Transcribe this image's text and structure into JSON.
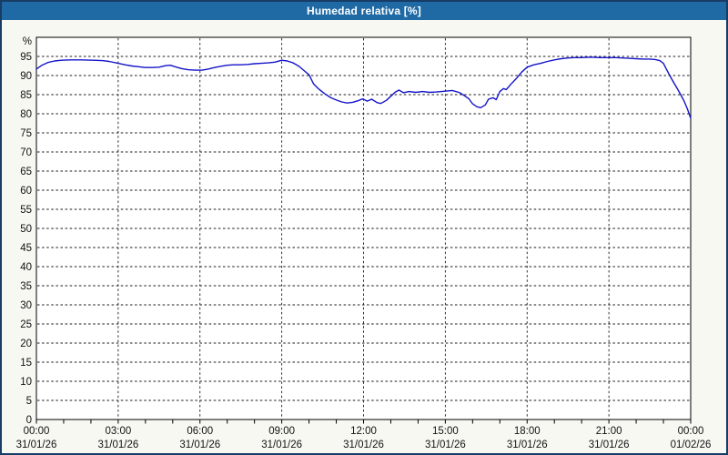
{
  "window": {
    "title": "Humedad relativa [%]"
  },
  "colors": {
    "titlebar_bg": "#1f6aa5",
    "title_text": "#ffffff",
    "frame_border": "#173c66",
    "page_bg": "#f8f8f3",
    "plot_bg": "#ffffff",
    "axis": "#000000",
    "grid": "#1a1a1a",
    "label_text": "#111111",
    "line": "#1414c8"
  },
  "chart_data": {
    "type": "line",
    "title": "Humedad relativa [%]",
    "ylabel": "%",
    "xlabel": "",
    "ylim": [
      0,
      100
    ],
    "ytick_step": 5,
    "ytick_label_min": 0,
    "ytick_label_max": 95,
    "xlim_hours": [
      0,
      24
    ],
    "major_gridline_every_hours": 3,
    "minor_tick_every_hours": 1,
    "grid": "dashed",
    "legend_position": "none",
    "x_ticks": [
      {
        "hour": 0,
        "time": "00:00",
        "date": "31/01/26"
      },
      {
        "hour": 3,
        "time": "03:00",
        "date": "31/01/26"
      },
      {
        "hour": 6,
        "time": "06:00",
        "date": "31/01/26"
      },
      {
        "hour": 9,
        "time": "09:00",
        "date": "31/01/26"
      },
      {
        "hour": 12,
        "time": "12:00",
        "date": "31/01/26"
      },
      {
        "hour": 15,
        "time": "15:00",
        "date": "31/01/26"
      },
      {
        "hour": 18,
        "time": "18:00",
        "date": "31/01/26"
      },
      {
        "hour": 21,
        "time": "21:00",
        "date": "31/01/26"
      },
      {
        "hour": 24,
        "time": "00:00",
        "date": "01/02/26"
      }
    ],
    "series": [
      {
        "name": "Humedad relativa",
        "unit": "%",
        "color": "#1414c8",
        "points_minute_pct": [
          [
            0,
            91.7
          ],
          [
            12,
            92.7
          ],
          [
            25,
            93.4
          ],
          [
            40,
            93.8
          ],
          [
            55,
            94.0
          ],
          [
            75,
            94.1
          ],
          [
            100,
            94.1
          ],
          [
            125,
            94.0
          ],
          [
            145,
            93.9
          ],
          [
            160,
            93.7
          ],
          [
            180,
            93.2
          ],
          [
            195,
            92.8
          ],
          [
            210,
            92.5
          ],
          [
            225,
            92.3
          ],
          [
            240,
            92.1
          ],
          [
            255,
            92.1
          ],
          [
            270,
            92.2
          ],
          [
            285,
            92.6
          ],
          [
            295,
            92.7
          ],
          [
            305,
            92.3
          ],
          [
            320,
            91.8
          ],
          [
            335,
            91.5
          ],
          [
            350,
            91.4
          ],
          [
            365,
            91.4
          ],
          [
            378,
            91.7
          ],
          [
            392,
            92.1
          ],
          [
            405,
            92.4
          ],
          [
            420,
            92.7
          ],
          [
            435,
            92.8
          ],
          [
            450,
            92.8
          ],
          [
            465,
            92.9
          ],
          [
            480,
            93.1
          ],
          [
            495,
            93.2
          ],
          [
            510,
            93.3
          ],
          [
            525,
            93.5
          ],
          [
            540,
            94.0
          ],
          [
            552,
            93.8
          ],
          [
            565,
            93.3
          ],
          [
            578,
            92.4
          ],
          [
            590,
            91.2
          ],
          [
            600,
            90.2
          ],
          [
            610,
            87.8
          ],
          [
            622,
            86.4
          ],
          [
            635,
            85.2
          ],
          [
            648,
            84.2
          ],
          [
            660,
            83.6
          ],
          [
            672,
            83.1
          ],
          [
            684,
            82.8
          ],
          [
            696,
            83.0
          ],
          [
            708,
            83.4
          ],
          [
            718,
            83.9
          ],
          [
            728,
            83.3
          ],
          [
            738,
            83.8
          ],
          [
            750,
            82.9
          ],
          [
            758,
            82.7
          ],
          [
            770,
            83.5
          ],
          [
            782,
            84.8
          ],
          [
            790,
            85.7
          ],
          [
            798,
            86.2
          ],
          [
            808,
            85.5
          ],
          [
            820,
            85.8
          ],
          [
            835,
            85.6
          ],
          [
            850,
            85.8
          ],
          [
            865,
            85.6
          ],
          [
            880,
            85.7
          ],
          [
            900,
            85.9
          ],
          [
            915,
            86.1
          ],
          [
            930,
            85.6
          ],
          [
            940,
            84.9
          ],
          [
            952,
            83.9
          ],
          [
            960,
            82.6
          ],
          [
            970,
            81.8
          ],
          [
            978,
            81.6
          ],
          [
            988,
            82.3
          ],
          [
            995,
            83.8
          ],
          [
            1005,
            84.2
          ],
          [
            1012,
            83.7
          ],
          [
            1020,
            85.8
          ],
          [
            1028,
            86.6
          ],
          [
            1034,
            86.3
          ],
          [
            1044,
            87.7
          ],
          [
            1056,
            89.2
          ],
          [
            1068,
            90.9
          ],
          [
            1080,
            92.2
          ],
          [
            1095,
            92.8
          ],
          [
            1110,
            93.2
          ],
          [
            1125,
            93.7
          ],
          [
            1140,
            94.1
          ],
          [
            1155,
            94.4
          ],
          [
            1170,
            94.6
          ],
          [
            1185,
            94.7
          ],
          [
            1200,
            94.7
          ],
          [
            1220,
            94.8
          ],
          [
            1240,
            94.7
          ],
          [
            1260,
            94.7
          ],
          [
            1275,
            94.7
          ],
          [
            1290,
            94.6
          ],
          [
            1305,
            94.5
          ],
          [
            1320,
            94.4
          ],
          [
            1335,
            94.3
          ],
          [
            1350,
            94.3
          ],
          [
            1362,
            94.2
          ],
          [
            1372,
            93.9
          ],
          [
            1380,
            93.2
          ],
          [
            1386,
            91.8
          ],
          [
            1394,
            90.0
          ],
          [
            1402,
            88.3
          ],
          [
            1410,
            86.7
          ],
          [
            1418,
            85.0
          ],
          [
            1426,
            83.2
          ],
          [
            1433,
            81.2
          ],
          [
            1440,
            78.8
          ]
        ]
      }
    ]
  }
}
